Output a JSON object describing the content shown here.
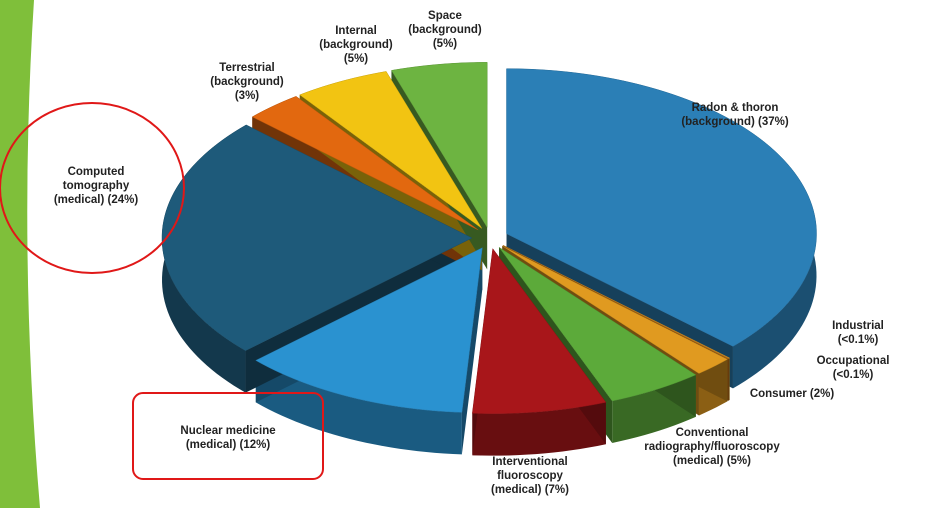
{
  "chart_data": {
    "type": "pie",
    "categories": [
      "Radon & thoron\n(background) (37%)",
      "Industrial (<0.1%)",
      "Occupational (<0.1%)",
      "Consumer (2%)",
      "Conventional\nradiography/fluoroscopy\n(medical) (5%)",
      "Interventional\nfluoroscopy\n(medical) (7%)",
      "Nuclear medicine\n(medical) (12%)",
      "Computed\ntomography\n(medical) (24%)",
      "Terrestrial\n(background)\n(3%)",
      "Internal\n(background)\n(5%)",
      "Space\n(background)\n(5%)"
    ],
    "values": [
      37,
      0.05,
      0.05,
      2,
      5,
      7,
      12,
      24,
      3,
      5,
      5
    ],
    "colors": [
      "#2b7fb6",
      "#e8a628",
      "#c8781a",
      "#e09a20",
      "#5caa3a",
      "#a8161a",
      "#2a92d0",
      "#1e5a7a",
      "#e2680f",
      "#f2c412",
      "#6db441"
    ]
  }
}
